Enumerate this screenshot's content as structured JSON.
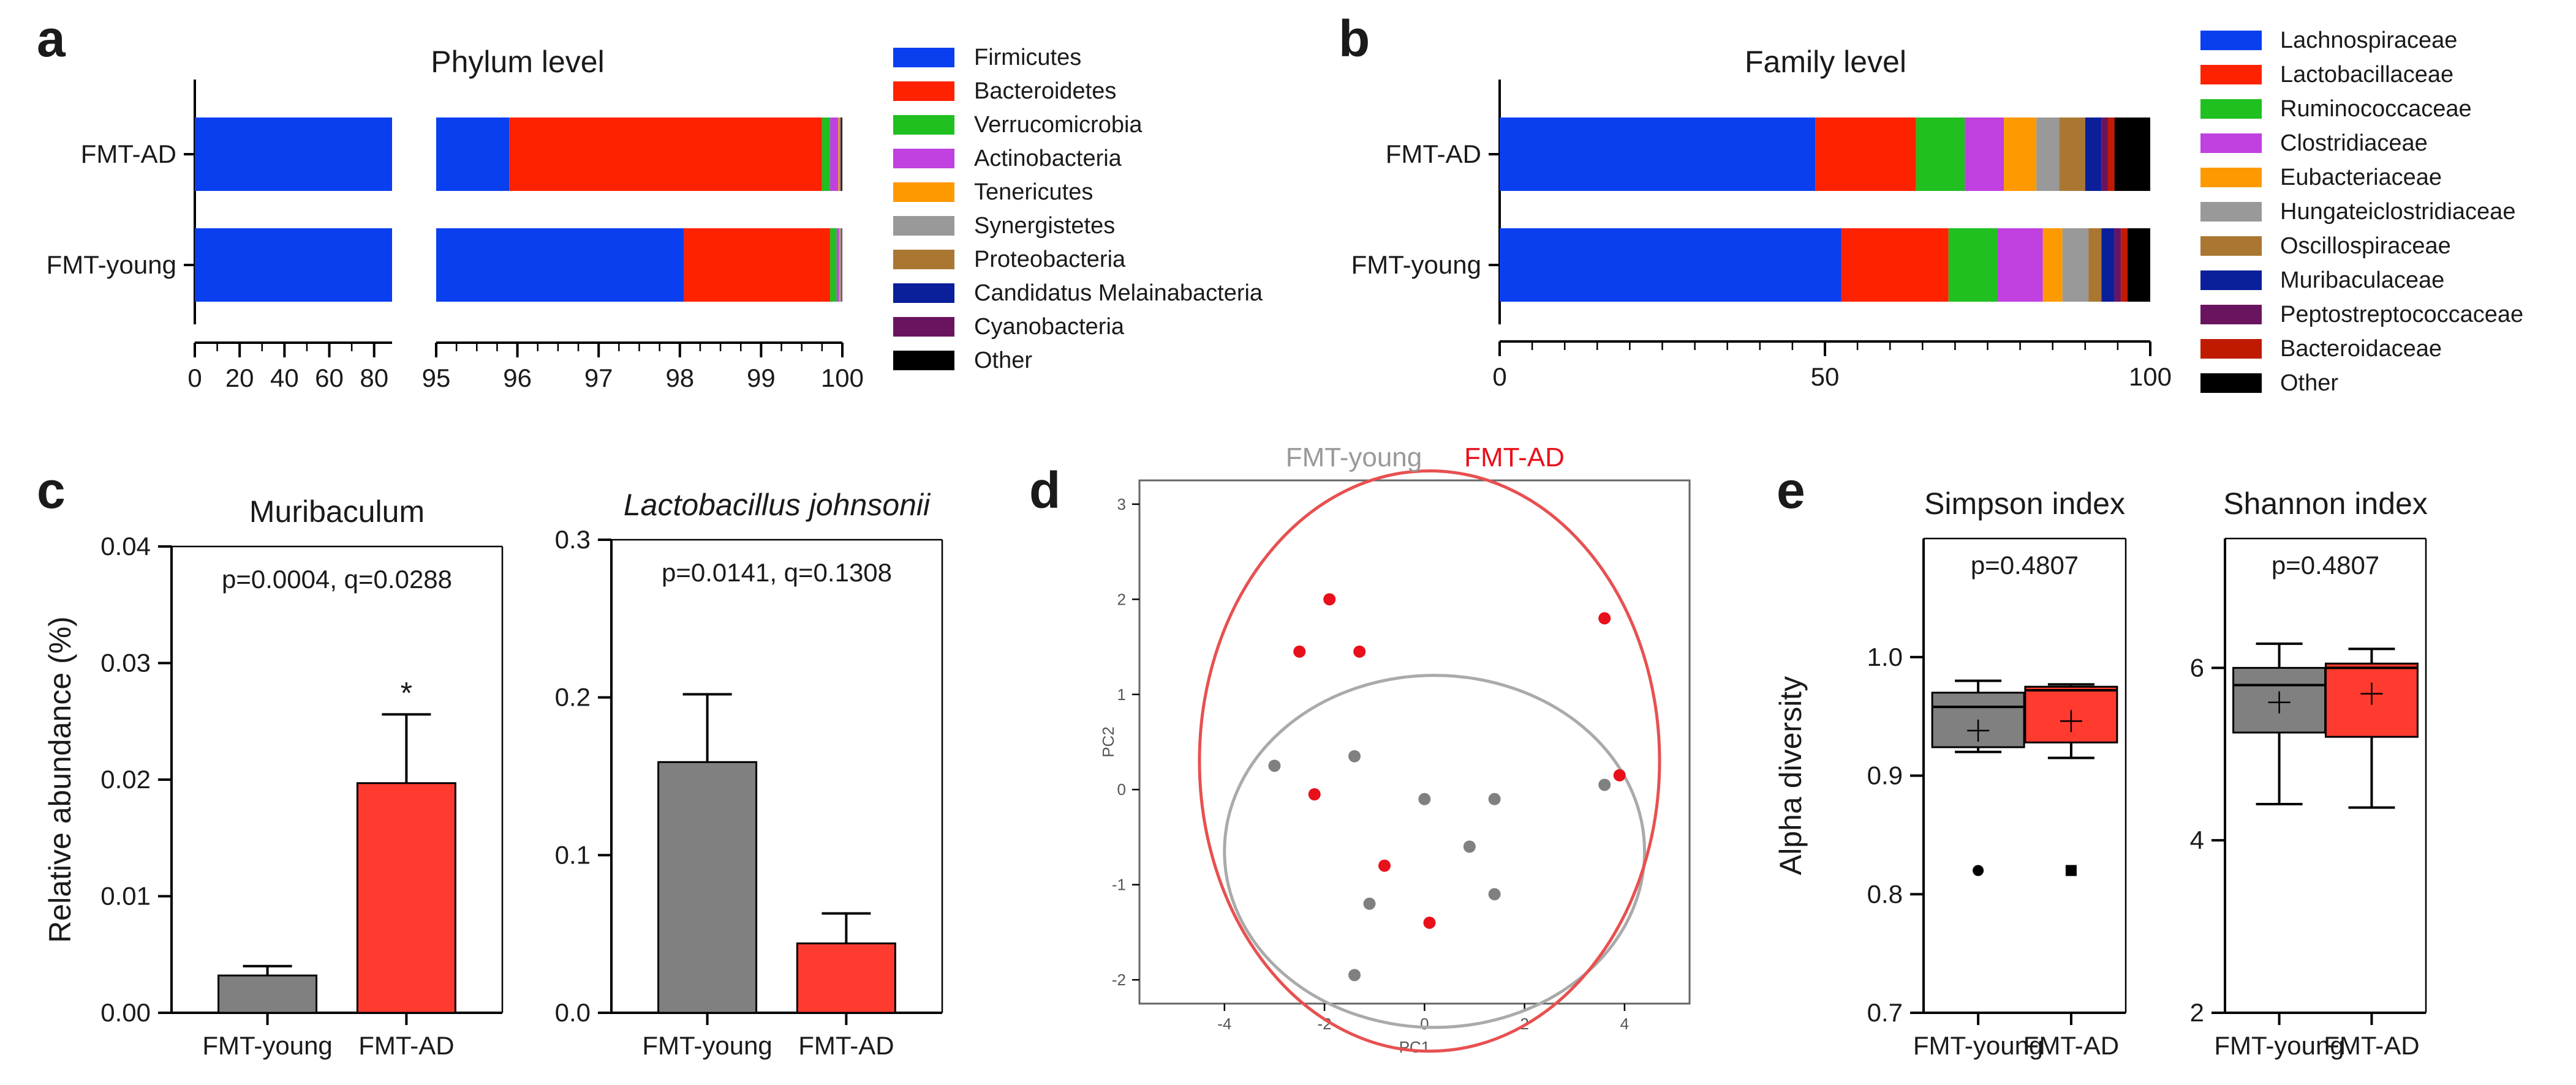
{
  "panels": {
    "a": {
      "label": "a",
      "title": "Phylum level"
    },
    "b": {
      "label": "b",
      "title": "Family level"
    },
    "c": {
      "label": "c"
    },
    "d": {
      "label": "d"
    },
    "e": {
      "label": "e"
    }
  },
  "chart_data": [
    {
      "id": "a",
      "type": "bar",
      "orientation": "horizontal",
      "stacked": true,
      "title": "Phylum level",
      "xlabel": "",
      "ylabel": "",
      "x_axis_break": {
        "segments": [
          [
            0,
            88
          ],
          [
            95,
            100
          ]
        ]
      },
      "xticks_left": [
        "0",
        "20",
        "40",
        "60",
        "80"
      ],
      "xticks_right": [
        "95",
        "96",
        "97",
        "98",
        "99",
        "100"
      ],
      "categories": [
        "FMT-AD",
        "FMT-young"
      ],
      "series": [
        {
          "name": "Firmicutes",
          "color": "#0a3ff0",
          "values": [
            95.9,
            98.05
          ]
        },
        {
          "name": "Bacteroidetes",
          "color": "#ff2200",
          "values": [
            3.85,
            1.8
          ]
        },
        {
          "name": "Verrucomicrobia",
          "color": "#20c020",
          "values": [
            0.1,
            0.08
          ]
        },
        {
          "name": "Actinobacteria",
          "color": "#c040e0",
          "values": [
            0.1,
            0.03
          ]
        },
        {
          "name": "Tenericutes",
          "color": "#ff9900",
          "values": [
            0.01,
            0.01
          ]
        },
        {
          "name": "Synergistetes",
          "color": "#999999",
          "values": [
            0.01,
            0.01
          ]
        },
        {
          "name": "Proteobacteria",
          "color": "#aa7733",
          "values": [
            0.01,
            0.01
          ]
        },
        {
          "name": "Candidatus Melainabacteria",
          "color": "#0a1f99",
          "values": [
            0.005,
            0.005
          ]
        },
        {
          "name": "Cyanobacteria",
          "color": "#6a1460",
          "values": [
            0.005,
            0.005
          ]
        },
        {
          "name": "Other",
          "color": "#000000",
          "values": [
            0.01,
            0.005
          ]
        }
      ]
    },
    {
      "id": "b",
      "type": "bar",
      "orientation": "horizontal",
      "stacked": true,
      "title": "Family level",
      "xlabel": "",
      "ylabel": "",
      "xlim": [
        0,
        100
      ],
      "xticks": [
        "0",
        "50",
        "100"
      ],
      "categories": [
        "FMT-AD",
        "FMT-young"
      ],
      "series": [
        {
          "name": "Lachnospiraceae",
          "color": "#0a3ff0",
          "values": [
            48.5,
            52.5
          ]
        },
        {
          "name": "Lactobacillaceae",
          "color": "#ff2200",
          "values": [
            15.5,
            16.5
          ]
        },
        {
          "name": "Ruminococcaceae",
          "color": "#20c020",
          "values": [
            7.5,
            7.5
          ]
        },
        {
          "name": "Clostridiaceae",
          "color": "#c040e0",
          "values": [
            6,
            7
          ]
        },
        {
          "name": "Eubacteriaceae",
          "color": "#ff9900",
          "values": [
            5,
            3
          ]
        },
        {
          "name": "Hungateiclostridiaceae",
          "color": "#999999",
          "values": [
            3.5,
            4
          ]
        },
        {
          "name": "Oscillospiraceae",
          "color": "#aa7733",
          "values": [
            4,
            2
          ]
        },
        {
          "name": "Muribaculaceae",
          "color": "#0a1f99",
          "values": [
            2.5,
            2
          ]
        },
        {
          "name": "Peptostreptococcaceae",
          "color": "#6a1460",
          "values": [
            1,
            1
          ]
        },
        {
          "name": "Bacteroidaceae",
          "color": "#c01a00",
          "values": [
            1,
            1
          ]
        },
        {
          "name": "Other",
          "color": "#000000",
          "values": [
            5.5,
            3.5
          ]
        }
      ]
    },
    {
      "id": "c1",
      "type": "bar",
      "title": "Muribaculum",
      "title_italic": false,
      "ylabel": "Relative abundance (%)",
      "xlabel": "",
      "ylim": [
        0,
        0.04
      ],
      "yticks": [
        "0.00",
        "0.01",
        "0.02",
        "0.03",
        "0.04"
      ],
      "categories": [
        "FMT-young",
        "FMT-AD"
      ],
      "values": [
        0.0032,
        0.0197
      ],
      "errors": [
        0.0008,
        0.0059
      ],
      "colors": [
        "#808080",
        "#ff3b2f"
      ],
      "stat_text": "p=0.0004, q=0.0288",
      "significance_marker": "*"
    },
    {
      "id": "c2",
      "type": "bar",
      "title": "Lactobacillus johnsonii",
      "title_italic": true,
      "ylabel": "",
      "xlabel": "",
      "ylim": [
        0,
        0.3
      ],
      "yticks": [
        "0.0",
        "0.1",
        "0.2",
        "0.3"
      ],
      "categories": [
        "FMT-young",
        "FMT-AD"
      ],
      "values": [
        0.159,
        0.044
      ],
      "errors": [
        0.043,
        0.019
      ],
      "colors": [
        "#808080",
        "#ff3b2f"
      ],
      "stat_text": "p=0.0141, q=0.1308"
    },
    {
      "id": "d",
      "type": "scatter",
      "title": "",
      "xlabel": "PC1",
      "ylabel": "PC2",
      "xlim": [
        -5.7,
        5.3
      ],
      "ylim": [
        -2.25,
        3.25
      ],
      "xticks": [
        "-4",
        "-2",
        "0",
        "2",
        "4"
      ],
      "yticks": [
        "-2",
        "-1",
        "0",
        "1",
        "2",
        "3"
      ],
      "legend": [
        {
          "name": "FMT-young",
          "color": "#999999"
        },
        {
          "name": "FMT-AD",
          "color": "#e8101a"
        }
      ],
      "series": [
        {
          "name": "FMT-young",
          "color": "#808080",
          "x": [
            -3.0,
            -1.4,
            0,
            1.4,
            0.9,
            3.6,
            -1.1,
            1.4,
            -1.4
          ],
          "y": [
            0.25,
            0.35,
            -0.1,
            -0.1,
            -0.6,
            0.05,
            -1.2,
            -1.1,
            -1.95
          ]
        },
        {
          "name": "FMT-AD",
          "color": "#e8101a",
          "x": [
            -1.9,
            -2.5,
            -1.3,
            3.6,
            3.9,
            -2.2,
            -0.8,
            0.1
          ],
          "y": [
            2.0,
            1.45,
            1.45,
            1.8,
            0.15,
            -0.05,
            -0.8,
            -1.4
          ]
        }
      ],
      "ellipses": [
        {
          "name": "FMT-young",
          "color": "#aaaaaa",
          "cx": 0.2,
          "cy": -0.65,
          "rx": 4.2,
          "ry": 1.85
        },
        {
          "name": "FMT-AD",
          "color": "#e85050",
          "cx": 0.1,
          "cy": 0.3,
          "rx": 4.6,
          "ry": 3.05
        }
      ]
    },
    {
      "id": "e1",
      "type": "box",
      "title": "Simpson index",
      "ylabel": "Alpha diversity",
      "xlabel": "",
      "ylim": [
        0.7,
        1.1
      ],
      "yticks": [
        "0.7",
        "0.8",
        "0.9",
        "1.0"
      ],
      "categories": [
        "FMT-young",
        "FMT-AD"
      ],
      "stat_text": "p=0.4807",
      "boxes": [
        {
          "color": "#808080",
          "whisker_low": 0.92,
          "q1": 0.924,
          "median": 0.958,
          "q3": 0.97,
          "whisker_high": 0.98,
          "mean": 0.938,
          "outliers": [
            0.82
          ],
          "outlier_symbol": "circle"
        },
        {
          "color": "#ff3b2f",
          "whisker_low": 0.915,
          "q1": 0.928,
          "median": 0.972,
          "q3": 0.975,
          "whisker_high": 0.977,
          "mean": 0.946,
          "outliers": [
            0.82
          ],
          "outlier_symbol": "square"
        }
      ]
    },
    {
      "id": "e2",
      "type": "box",
      "title": "Shannon index",
      "ylabel": "",
      "xlabel": "",
      "ylim": [
        2,
        7.5
      ],
      "yticks": [
        "2",
        "4",
        "6"
      ],
      "categories": [
        "FMT-young",
        "FMT-AD"
      ],
      "stat_text": "p=0.4807",
      "boxes": [
        {
          "color": "#808080",
          "whisker_low": 4.42,
          "q1": 5.25,
          "median": 5.8,
          "q3": 6.0,
          "whisker_high": 6.28,
          "mean": 5.6,
          "outliers": []
        },
        {
          "color": "#ff3b2f",
          "whisker_low": 4.38,
          "q1": 5.2,
          "median": 6.0,
          "q3": 6.05,
          "whisker_high": 6.22,
          "mean": 5.7,
          "outliers": []
        }
      ]
    }
  ]
}
